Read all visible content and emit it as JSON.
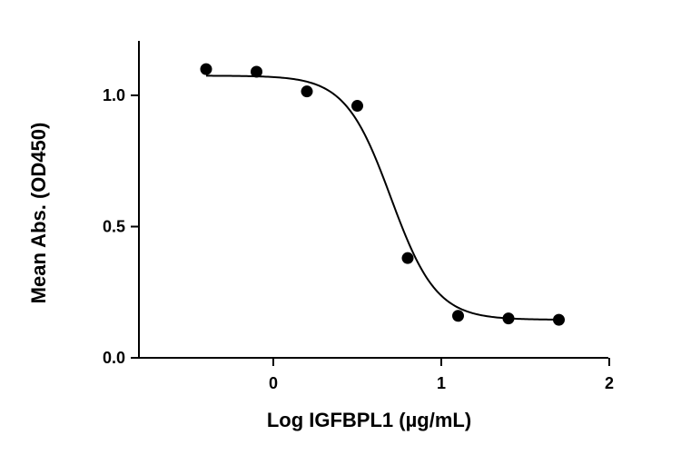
{
  "chart_data": {
    "type": "scatter",
    "title": "",
    "xlabel": "Log IGFBPL1 (µg/mL)",
    "ylabel": "Mean  Abs. (OD450)",
    "xlim": [
      -0.8,
      2.0
    ],
    "ylim": [
      0.0,
      1.2
    ],
    "xticks": [
      0,
      1,
      2
    ],
    "xtick_labels": [
      "0",
      "1",
      "2"
    ],
    "yticks": [
      0.0,
      0.5,
      1.0
    ],
    "ytick_labels": [
      "0.0",
      "0.5",
      "1.0"
    ],
    "grid": false,
    "legend": "none",
    "series": [
      {
        "points": [
          {
            "x": -0.4,
            "y": 1.1
          },
          {
            "x": -0.1,
            "y": 1.09
          },
          {
            "x": 0.2,
            "y": 1.015
          },
          {
            "x": 0.5,
            "y": 0.96
          },
          {
            "x": 0.8,
            "y": 0.38
          },
          {
            "x": 1.1,
            "y": 0.16
          },
          {
            "x": 1.4,
            "y": 0.15
          },
          {
            "x": 1.7,
            "y": 0.145
          }
        ],
        "fit": {
          "model": "four-parameter logistic",
          "top": 1.075,
          "bottom": 0.145,
          "log_ic50": 0.7,
          "hill_slope": -3.2,
          "x_range": [
            -0.4,
            1.7
          ]
        }
      }
    ],
    "colors": {
      "points": "#000000",
      "line": "#000000",
      "axis": "#000000"
    }
  }
}
